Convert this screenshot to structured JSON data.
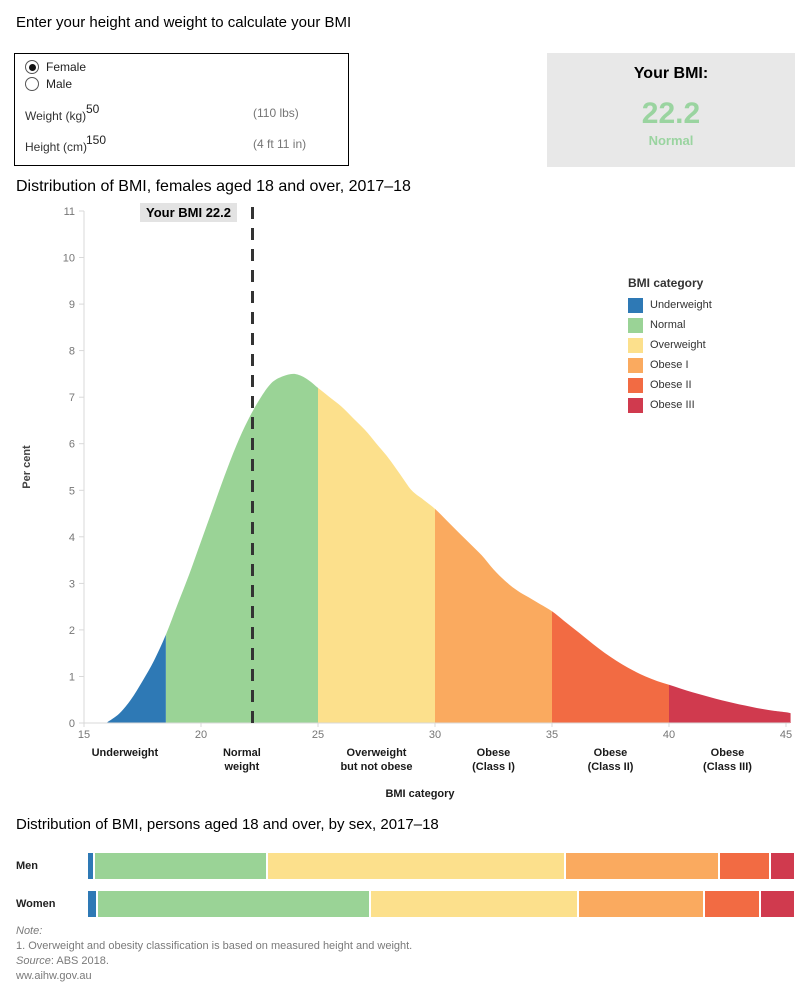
{
  "form": {
    "heading": "Enter your height and weight to calculate your BMI",
    "sex_options": [
      {
        "label": "Female",
        "selected": true
      },
      {
        "label": "Male",
        "selected": false
      }
    ],
    "weight": {
      "label": "Weight (kg)",
      "value": "50",
      "imperial": "(110 lbs)"
    },
    "height": {
      "label": "Height (cm)",
      "value": "150",
      "imperial": "(4 ft 11 in)"
    }
  },
  "result": {
    "heading": "Your BMI:",
    "value": "22.2",
    "category": "Normal",
    "value_color": "#9AD4A0"
  },
  "palette": {
    "underweight": "#2E79B5",
    "normal": "#9AD396",
    "overweight": "#FCE08C",
    "obese1": "#FAAA5F",
    "obese2": "#F26B43",
    "obese3": "#D03A4E"
  },
  "chart_data": [
    {
      "type": "area",
      "title": "Distribution of BMI, females aged 18 and over, 2017–18",
      "xlabel": "BMI category",
      "ylabel": "Per cent",
      "xlim": [
        15,
        45.2
      ],
      "ylim": [
        0,
        11
      ],
      "x_ticks": [
        15,
        20,
        25,
        30,
        35,
        40,
        45
      ],
      "y_ticks": [
        0,
        1,
        2,
        3,
        4,
        5,
        6,
        7,
        8,
        9,
        10,
        11
      ],
      "annotation": {
        "label": "Your BMI 22.2",
        "x": 22.2
      },
      "segments": [
        {
          "name": "Underweight",
          "range": [
            15,
            18.5
          ],
          "color": "#2E79B5",
          "axis_label": [
            "Underweight",
            ""
          ]
        },
        {
          "name": "Normal",
          "range": [
            18.5,
            25
          ],
          "color": "#9AD396",
          "axis_label": [
            "Normal",
            "weight"
          ]
        },
        {
          "name": "Overweight",
          "range": [
            25,
            30
          ],
          "color": "#FCE08C",
          "axis_label": [
            "Overweight",
            "but not obese"
          ]
        },
        {
          "name": "Obese I",
          "range": [
            30,
            35
          ],
          "color": "#FAAA5F",
          "axis_label": [
            "Obese",
            "(Class I)"
          ]
        },
        {
          "name": "Obese II",
          "range": [
            35,
            40
          ],
          "color": "#F26B43",
          "axis_label": [
            "Obese",
            "(Class II)"
          ]
        },
        {
          "name": "Obese III",
          "range": [
            40,
            45.2
          ],
          "color": "#D03A4E",
          "axis_label": [
            "Obese",
            "(Class III)"
          ]
        }
      ],
      "density_points": [
        [
          16,
          0.02
        ],
        [
          16.5,
          0.2
        ],
        [
          17,
          0.5
        ],
        [
          17.5,
          0.9
        ],
        [
          18,
          1.35
        ],
        [
          18.5,
          1.9
        ],
        [
          19,
          2.55
        ],
        [
          19.5,
          3.2
        ],
        [
          20,
          3.9
        ],
        [
          20.5,
          4.6
        ],
        [
          21,
          5.3
        ],
        [
          21.5,
          5.95
        ],
        [
          22,
          6.5
        ],
        [
          22.5,
          6.95
        ],
        [
          23,
          7.3
        ],
        [
          23.5,
          7.45
        ],
        [
          24,
          7.5
        ],
        [
          24.5,
          7.4
        ],
        [
          25,
          7.2
        ],
        [
          25.5,
          7.0
        ],
        [
          26,
          6.8
        ],
        [
          26.5,
          6.55
        ],
        [
          27,
          6.3
        ],
        [
          27.5,
          6.0
        ],
        [
          28,
          5.7
        ],
        [
          28.5,
          5.35
        ],
        [
          29,
          5.0
        ],
        [
          29.5,
          4.8
        ],
        [
          30,
          4.6
        ],
        [
          30.5,
          4.35
        ],
        [
          31,
          4.1
        ],
        [
          31.5,
          3.85
        ],
        [
          32,
          3.6
        ],
        [
          32.5,
          3.3
        ],
        [
          33,
          3.05
        ],
        [
          33.5,
          2.85
        ],
        [
          34,
          2.7
        ],
        [
          34.5,
          2.55
        ],
        [
          35,
          2.4
        ],
        [
          35.5,
          2.2
        ],
        [
          36,
          2.0
        ],
        [
          36.5,
          1.8
        ],
        [
          37,
          1.6
        ],
        [
          37.5,
          1.42
        ],
        [
          38,
          1.26
        ],
        [
          38.5,
          1.12
        ],
        [
          39,
          1.0
        ],
        [
          39.5,
          0.9
        ],
        [
          40,
          0.82
        ],
        [
          40.5,
          0.74
        ],
        [
          41,
          0.66
        ],
        [
          41.5,
          0.59
        ],
        [
          42,
          0.52
        ],
        [
          42.5,
          0.46
        ],
        [
          43,
          0.4
        ],
        [
          43.5,
          0.35
        ],
        [
          44,
          0.3
        ],
        [
          44.5,
          0.26
        ],
        [
          45,
          0.23
        ],
        [
          45.2,
          0.21
        ]
      ],
      "legend": {
        "title": "BMI category",
        "items": [
          {
            "label": "Underweight",
            "color": "#2E79B5"
          },
          {
            "label": "Normal",
            "color": "#9AD396"
          },
          {
            "label": "Overweight",
            "color": "#FCE08C"
          },
          {
            "label": "Obese I",
            "color": "#FAAA5F"
          },
          {
            "label": "Obese II",
            "color": "#F26B43"
          },
          {
            "label": "Obese III",
            "color": "#D03A4E"
          }
        ]
      }
    },
    {
      "type": "bar",
      "title": "Distribution of BMI, persons aged 18 and over, by sex, 2017–18",
      "orientation": "horizontal-stacked",
      "unit": "per cent",
      "categories": [
        "Underweight",
        "Normal",
        "Overweight",
        "Obese I",
        "Obese II",
        "Obese III"
      ],
      "colors": [
        "#2E79B5",
        "#9AD396",
        "#FCE08C",
        "#FAAA5F",
        "#F26B43",
        "#D03A4E"
      ],
      "rows": [
        {
          "label": "Men",
          "values": [
            0.7,
            24.2,
            41.9,
            21.5,
            6.9,
            3.3
          ]
        },
        {
          "label": "Women",
          "values": [
            1.1,
            38.2,
            29.0,
            17.5,
            7.5,
            4.7
          ]
        }
      ]
    }
  ],
  "footer": {
    "note_label": "Note:",
    "note_1": "1. Overweight and obesity classification is based on measured height and weight.",
    "source_label": "Source",
    "source_text": ": ABS 2018.",
    "website": "ww.aihw.gov.au"
  }
}
